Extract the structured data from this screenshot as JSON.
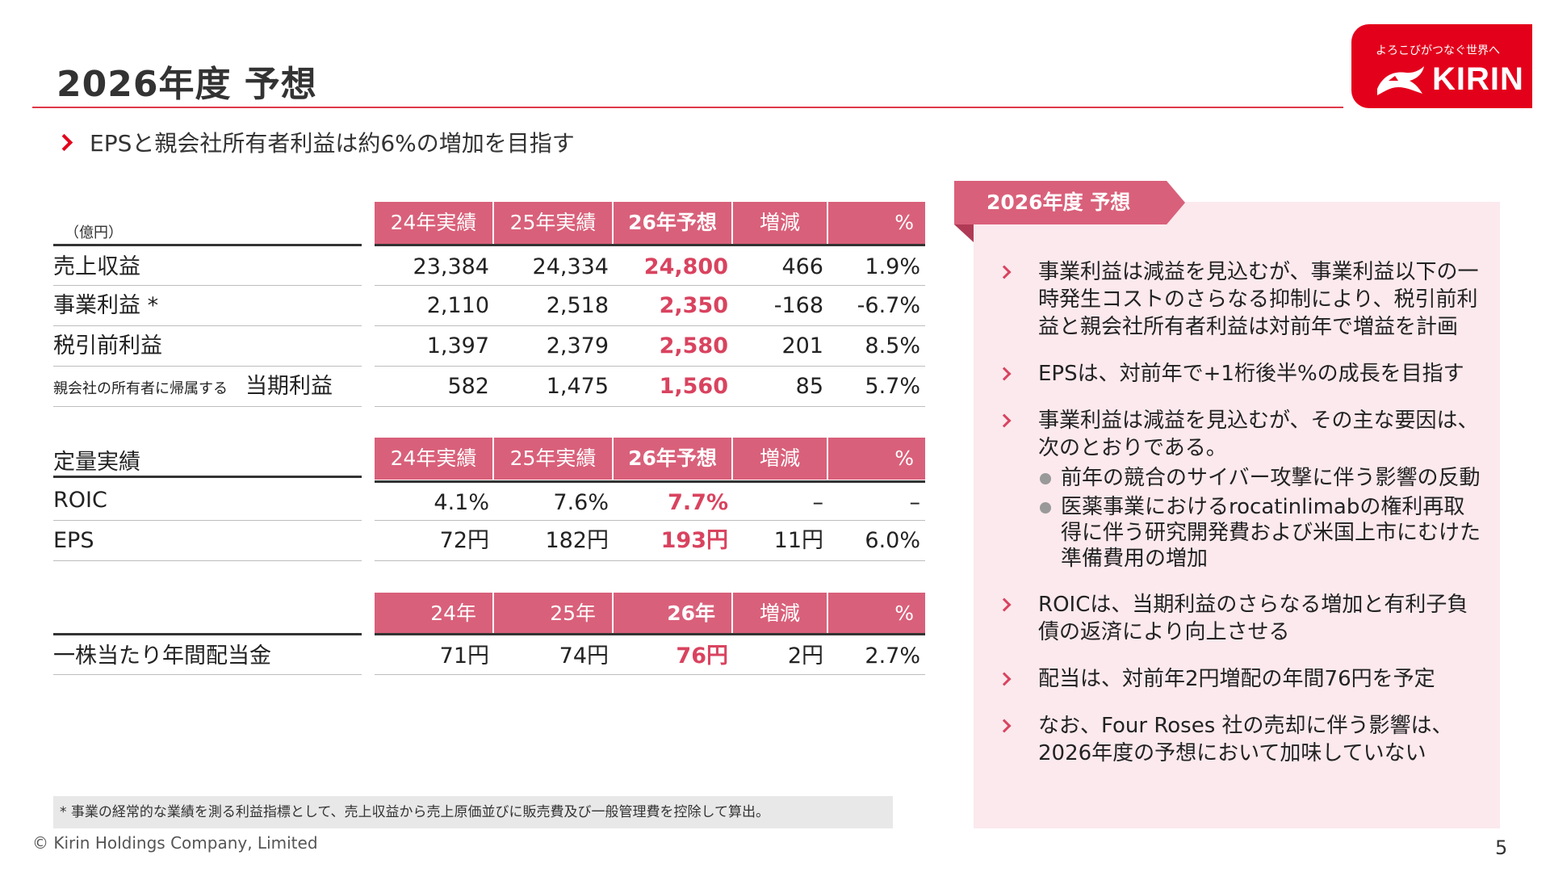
{
  "page": {
    "title": "2026年度 予想",
    "subtitle": "EPSと親会社所有者利益は約6%の増加を目指す",
    "page_number": "5",
    "copyright": "© Kirin Holdings Company, Limited",
    "footnote": "* 事業の経常的な業績を測る利益指標として、売上収益から売上原価並びに販売費及び一般管理費を控除して算出。"
  },
  "logo": {
    "tagline": "よろこびがつなぐ世界へ",
    "name": "KIRIN",
    "mark": "kirin-mark-icon"
  },
  "colors": {
    "accent_red": "#e3001b",
    "header_pink": "#d9607a",
    "highlight": "#d9435f",
    "panel_bg": "#fbe9ed"
  },
  "table1": {
    "unit": "（億円）",
    "headers": [
      "24年実績",
      "25年実績",
      "26年予想",
      "増減",
      "%"
    ],
    "rows": [
      {
        "label": "売上収益",
        "prefix": "",
        "values": [
          "23,384",
          "24,334",
          "24,800",
          "466",
          "1.9%"
        ]
      },
      {
        "label": "事業利益 *",
        "prefix": "",
        "values": [
          "2,110",
          "2,518",
          "2,350",
          "-168",
          "-6.7%"
        ]
      },
      {
        "label": "税引前利益",
        "prefix": "",
        "values": [
          "1,397",
          "2,379",
          "2,580",
          "201",
          "8.5%"
        ]
      },
      {
        "label": "当期利益",
        "prefix": "親会社の所有者に帰属する",
        "values": [
          "582",
          "1,475",
          "1,560",
          "85",
          "5.7%"
        ]
      }
    ]
  },
  "table2": {
    "label": "定量実績",
    "headers": [
      "24年実績",
      "25年実績",
      "26年予想",
      "増減",
      "%"
    ],
    "rows": [
      {
        "label": "ROIC",
        "values": [
          "4.1%",
          "7.6%",
          "7.7%",
          "–",
          "–"
        ]
      },
      {
        "label": "EPS",
        "values": [
          "72円",
          "182円",
          "193円",
          "11円",
          "6.0%"
        ]
      }
    ]
  },
  "table3": {
    "headers": [
      "24年",
      "25年",
      "26年",
      "増減",
      "%"
    ],
    "rows": [
      {
        "label": "一株当たり年間配当金",
        "values": [
          "71円",
          "74円",
          "76円",
          "2円",
          "2.7%"
        ]
      }
    ]
  },
  "panel": {
    "tag": "2026年度 予想",
    "bullets": [
      {
        "text": "事業利益は減益を見込むが、事業利益以下の一時発生コストのさらなる抑制により、税引前利益と親会社所有者利益は対前年で増益を計画",
        "subs": []
      },
      {
        "text": "EPSは、対前年で+1桁後半%の成長を目指す",
        "subs": []
      },
      {
        "text": "事業利益は減益を見込むが、その主な要因は、次のとおりである。",
        "subs": [
          "前年の競合のサイバー攻撃に伴う影響の反動",
          "医薬事業におけるrocatinlimabの権利再取得に伴う研究開発費および米国上市にむけた準備費用の増加"
        ]
      },
      {
        "text": "ROICは、当期利益のさらなる増加と有利子負債の返済により向上させる",
        "subs": []
      },
      {
        "text": "配当は、対前年2円増配の年間76円を予定",
        "subs": []
      },
      {
        "text": "なお、Four Roses 社の売却に伴う影響は、2026年度の予想において加味していない",
        "subs": []
      }
    ]
  }
}
